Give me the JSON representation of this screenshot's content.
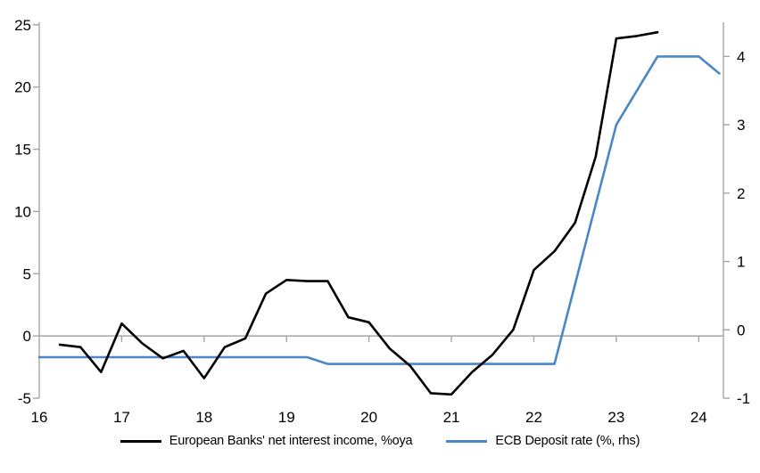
{
  "chart_data": {
    "type": "line",
    "title": "",
    "x_axis": {
      "range": [
        16,
        24.3
      ],
      "ticks": [
        16,
        17,
        18,
        19,
        20,
        21,
        22,
        23,
        24
      ],
      "labels": [
        "16",
        "17",
        "18",
        "19",
        "20",
        "21",
        "22",
        "23",
        "24"
      ]
    },
    "y_axis_left": {
      "range": [
        -5,
        25.2
      ],
      "ticks": [
        -5,
        0,
        5,
        10,
        15,
        20,
        25
      ],
      "labels": [
        "-5",
        "0",
        "5",
        "10",
        "15",
        "20",
        "25"
      ]
    },
    "y_axis_right": {
      "range": [
        -1,
        4.5
      ],
      "ticks": [
        -1,
        0,
        1,
        2,
        3,
        4
      ],
      "labels": [
        "-1",
        "0",
        "1",
        "2",
        "3",
        "4"
      ]
    },
    "grid": "zero-line-only",
    "legend_position": "bottom",
    "series": [
      {
        "name": "European Banks' net interest income, %oya",
        "axis": "left",
        "color": "#000000",
        "x": [
          16.25,
          16.5,
          16.75,
          17.0,
          17.25,
          17.5,
          17.75,
          18.0,
          18.25,
          18.5,
          18.75,
          19.0,
          19.25,
          19.5,
          19.75,
          20.0,
          20.25,
          20.5,
          20.75,
          21.0,
          21.25,
          21.5,
          21.75,
          22.0,
          22.25,
          22.5,
          22.75,
          23.0,
          23.25,
          23.5
        ],
        "y": [
          -0.7,
          -0.9,
          -2.9,
          1.0,
          -0.6,
          -1.8,
          -1.2,
          -3.4,
          -0.9,
          -0.2,
          3.4,
          4.5,
          4.4,
          4.4,
          1.5,
          1.1,
          -1.0,
          -2.4,
          -4.6,
          -4.7,
          -2.9,
          -1.5,
          0.5,
          5.3,
          6.8,
          9.1,
          14.4,
          23.9,
          24.1,
          24.4
        ]
      },
      {
        "name": "ECB Deposit rate (%, rhs)",
        "axis": "right",
        "color": "#4b87c6",
        "x": [
          16.0,
          19.25,
          19.5,
          22.25,
          23.0,
          23.5,
          24.0,
          24.25
        ],
        "y": [
          -0.4,
          -0.4,
          -0.5,
          -0.5,
          3.0,
          4.0,
          4.0,
          3.75
        ]
      }
    ]
  },
  "legend": {
    "items": [
      {
        "label": "European Banks' net interest income, %oya",
        "color": "#000000"
      },
      {
        "label": "ECB Deposit rate (%, rhs)",
        "color": "#4b87c6"
      }
    ]
  },
  "colors": {
    "axis_line": "#a6a6a6",
    "zero_line": "#a6a6a6",
    "tick": "#a6a6a6",
    "text": "#000000",
    "background": "#ffffff"
  }
}
